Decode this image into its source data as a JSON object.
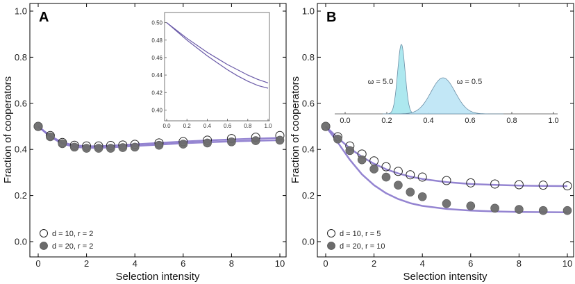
{
  "chart_data": [
    {
      "type": "scatter",
      "panel": "A",
      "xlabel": "Selection intensity",
      "ylabel": "Fraction of cooperators",
      "xlim": [
        -0.3,
        10.3
      ],
      "ylim": [
        -0.08,
        1.05
      ],
      "xticks": [
        0,
        2,
        4,
        6,
        8,
        10
      ],
      "yticks": [
        0.0,
        0.2,
        0.4,
        0.6,
        0.8,
        1.0
      ],
      "xtick_labels": [
        "0",
        "2",
        "4",
        "6",
        "8",
        "10"
      ],
      "ytick_labels": [
        "0.0",
        "0.2",
        "0.4",
        "0.6",
        "0.8",
        "1.0"
      ],
      "legend_position": "bottom-left",
      "series": [
        {
          "name": "d = 10, r = 2",
          "marker": "open-circle",
          "x": [
            0,
            0.5,
            1,
            1.5,
            2,
            2.5,
            3,
            3.5,
            4,
            5,
            6,
            7,
            8,
            9,
            10
          ],
          "y": [
            0.5,
            0.46,
            0.43,
            0.418,
            0.415,
            0.415,
            0.417,
            0.419,
            0.422,
            0.428,
            0.434,
            0.44,
            0.447,
            0.453,
            0.46
          ]
        },
        {
          "name": "d = 20, r = 2",
          "marker": "filled-circle",
          "x": [
            0,
            0.5,
            1,
            1.5,
            2,
            2.5,
            3,
            3.5,
            4,
            5,
            6,
            7,
            8,
            9,
            10
          ],
          "y": [
            0.5,
            0.455,
            0.425,
            0.41,
            0.405,
            0.405,
            0.405,
            0.408,
            0.41,
            0.418,
            0.423,
            0.428,
            0.433,
            0.438,
            0.44
          ]
        }
      ],
      "curves": [
        {
          "x": [
            0,
            0.5,
            1,
            1.5,
            2,
            2.5,
            3,
            4,
            5,
            6,
            7,
            8,
            9,
            10
          ],
          "y": [
            0.5,
            0.458,
            0.43,
            0.418,
            0.414,
            0.414,
            0.416,
            0.422,
            0.428,
            0.434,
            0.439,
            0.443,
            0.447,
            0.45
          ]
        },
        {
          "x": [
            0,
            0.5,
            1,
            1.5,
            2,
            2.5,
            3,
            4,
            5,
            6,
            7,
            8,
            9,
            10
          ],
          "y": [
            0.5,
            0.455,
            0.425,
            0.411,
            0.407,
            0.407,
            0.409,
            0.415,
            0.421,
            0.427,
            0.431,
            0.435,
            0.438,
            0.44
          ]
        }
      ],
      "inset": {
        "type": "line",
        "xlim": [
          0,
          1.0
        ],
        "ylim": [
          0.39,
          0.51
        ],
        "xticks": [
          0.0,
          0.2,
          0.4,
          0.6,
          0.8,
          1.0
        ],
        "yticks": [
          0.4,
          0.42,
          0.44,
          0.46,
          0.48,
          0.5
        ],
        "xtick_labels": [
          "0.0",
          "0.2",
          "0.4",
          "0.6",
          "0.8",
          "1.0"
        ],
        "ytick_labels": [
          "0.40",
          "0.42",
          "0.44",
          "0.46",
          "0.48",
          "0.50"
        ],
        "series": [
          {
            "x": [
              0,
              0.1,
              0.2,
              0.3,
              0.4,
              0.5,
              0.6,
              0.7,
              0.8,
              0.9,
              1.0
            ],
            "y": [
              0.5,
              0.491,
              0.482,
              0.474,
              0.466,
              0.459,
              0.452,
              0.446,
              0.44,
              0.435,
              0.431
            ]
          },
          {
            "x": [
              0,
              0.1,
              0.2,
              0.3,
              0.4,
              0.5,
              0.6,
              0.7,
              0.8,
              0.9,
              1.0
            ],
            "y": [
              0.5,
              0.49,
              0.48,
              0.471,
              0.462,
              0.454,
              0.446,
              0.439,
              0.433,
              0.428,
              0.425
            ]
          }
        ]
      }
    },
    {
      "type": "scatter",
      "panel": "B",
      "xlabel": "Selection intensity",
      "ylabel": "Fraction of cooperators",
      "xlim": [
        -0.3,
        10.3
      ],
      "ylim": [
        -0.08,
        1.05
      ],
      "xticks": [
        0,
        2,
        4,
        6,
        8,
        10
      ],
      "yticks": [
        0.0,
        0.2,
        0.4,
        0.6,
        0.8,
        1.0
      ],
      "xtick_labels": [
        "0",
        "2",
        "4",
        "6",
        "8",
        "10"
      ],
      "ytick_labels": [
        "0.0",
        "0.2",
        "0.4",
        "0.6",
        "0.8",
        "1.0"
      ],
      "legend_position": "bottom-left",
      "series": [
        {
          "name": "d = 10, r = 5",
          "marker": "open-circle",
          "x": [
            0,
            0.5,
            1,
            1.5,
            2,
            2.5,
            3,
            3.5,
            4,
            5,
            6,
            7,
            8,
            9,
            10
          ],
          "y": [
            0.5,
            0.455,
            0.415,
            0.38,
            0.35,
            0.325,
            0.305,
            0.29,
            0.28,
            0.265,
            0.255,
            0.25,
            0.247,
            0.245,
            0.242
          ]
        },
        {
          "name": "d = 20, r = 10",
          "marker": "filled-circle",
          "x": [
            0,
            0.5,
            1,
            1.5,
            2,
            2.5,
            3,
            3.5,
            4,
            5,
            6,
            7,
            8,
            9,
            10
          ],
          "y": [
            0.5,
            0.445,
            0.395,
            0.355,
            0.315,
            0.28,
            0.245,
            0.215,
            0.195,
            0.165,
            0.155,
            0.145,
            0.14,
            0.135,
            0.135
          ]
        }
      ],
      "curves": [
        {
          "x": [
            0,
            0.5,
            1,
            1.5,
            2,
            2.5,
            3,
            3.5,
            4,
            5,
            6,
            7,
            8,
            9,
            10
          ],
          "y": [
            0.5,
            0.45,
            0.405,
            0.368,
            0.338,
            0.314,
            0.296,
            0.282,
            0.272,
            0.258,
            0.25,
            0.246,
            0.243,
            0.242,
            0.241
          ]
        },
        {
          "x": [
            0,
            0.5,
            1,
            1.5,
            2,
            2.5,
            3,
            3.5,
            4,
            5,
            6,
            7,
            8,
            9,
            10
          ],
          "y": [
            0.5,
            0.43,
            0.355,
            0.292,
            0.245,
            0.21,
            0.185,
            0.167,
            0.155,
            0.142,
            0.135,
            0.131,
            0.129,
            0.128,
            0.127
          ]
        }
      ],
      "inset": {
        "type": "area",
        "xlim": [
          -0.05,
          1.02
        ],
        "xticks": [
          0.0,
          0.2,
          0.4,
          0.6,
          0.8,
          1.0
        ],
        "xtick_labels": [
          "0.0",
          "0.2",
          "0.4",
          "0.6",
          "0.8",
          "1.0"
        ],
        "distributions": [
          {
            "label": "ω = 5.0",
            "mean": 0.27,
            "sd": 0.018,
            "peak": 1.0
          },
          {
            "label": "ω = 0.5",
            "mean": 0.47,
            "sd": 0.058,
            "peak": 0.52
          }
        ]
      }
    }
  ],
  "colors": {
    "curve": "#8877cc",
    "curve_dark": "#6a5aa8",
    "filled_marker": "#6b6b6b",
    "dist_fill": "#bfe6f6",
    "dist_fill_narrow": "#a9e7ee",
    "dist_stroke": "#6c8fa6"
  }
}
